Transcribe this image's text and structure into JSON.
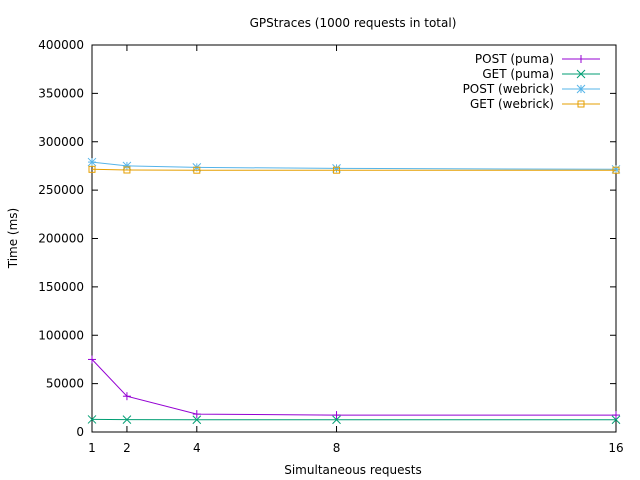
{
  "chart_data": {
    "type": "line",
    "title": "GPStraces (1000 requests in total)",
    "xlabel": "Simultaneous requests",
    "ylabel": "Time (ms)",
    "xlim": [
      1,
      16
    ],
    "ylim": [
      0,
      400000
    ],
    "x_ticks": [
      1,
      2,
      4,
      8,
      16
    ],
    "y_ticks": [
      0,
      50000,
      100000,
      150000,
      200000,
      250000,
      300000,
      350000,
      400000
    ],
    "grid": false,
    "legend_position": "top-right",
    "x": [
      1,
      2,
      4,
      8,
      16
    ],
    "series": [
      {
        "name": "POST (puma)",
        "color": "#9400d3",
        "marker": "plus",
        "values": [
          75000,
          37000,
          18500,
          17500,
          17500
        ]
      },
      {
        "name": "GET (puma)",
        "color": "#009e73",
        "marker": "cross",
        "values": [
          13000,
          12800,
          12700,
          12700,
          12700
        ]
      },
      {
        "name": "POST (webrick)",
        "color": "#56b4e9",
        "marker": "star",
        "values": [
          279000,
          275000,
          273500,
          272500,
          271500
        ]
      },
      {
        "name": "GET (webrick)",
        "color": "#e69f00",
        "marker": "square",
        "values": [
          271500,
          270800,
          270600,
          270600,
          270600
        ]
      }
    ]
  }
}
